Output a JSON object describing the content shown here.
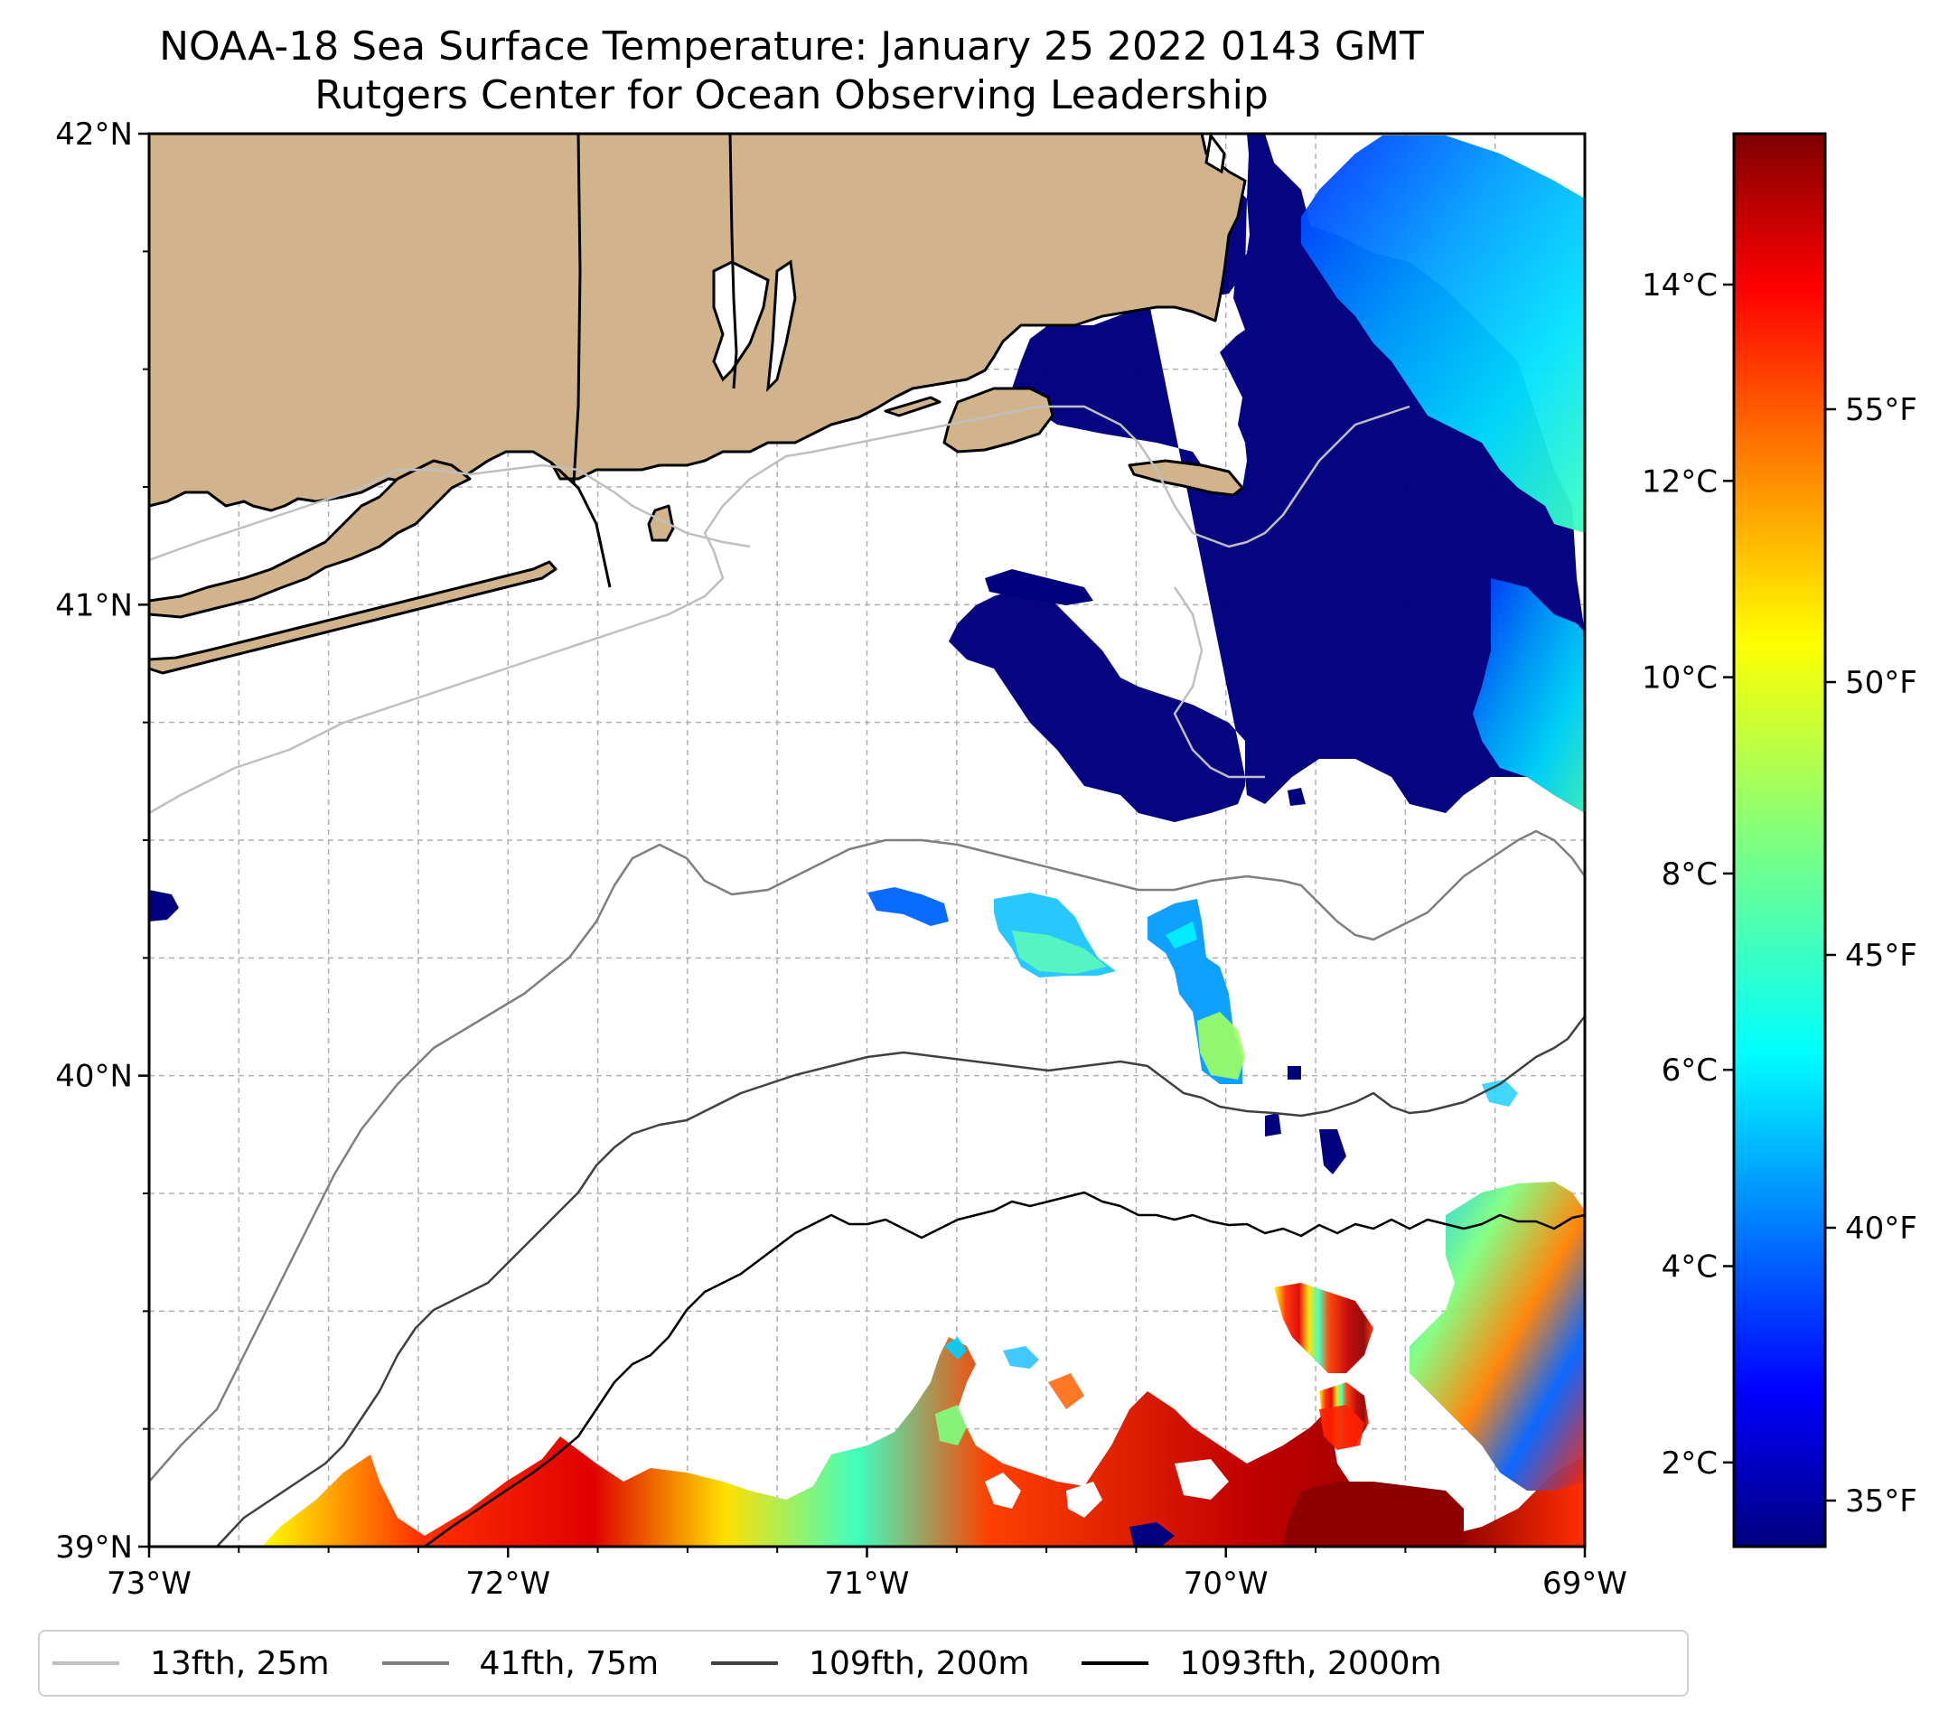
{
  "title": {
    "line1": "NOAA-18 Sea Surface Temperature: January 25 2022 0143 GMT",
    "line2": "Rutgers Center for Ocean Observing Leadership"
  },
  "map": {
    "lat_ticks": [
      "42°N",
      "41°N",
      "40°N",
      "39°N"
    ],
    "lon_ticks": [
      "73°W",
      "72°W",
      "71°W",
      "70°W",
      "69°W"
    ],
    "extent": {
      "lon_min": -73,
      "lon_max": -69,
      "lat_min": 39,
      "lat_max": 42
    },
    "gridlines": true,
    "land_color": "#d2b48c",
    "ocean_color": "#ffffff"
  },
  "colorbar": {
    "celsius_ticks": [
      "14°C",
      "12°C",
      "10°C",
      "8°C",
      "6°C",
      "4°C",
      "2°C"
    ],
    "fahrenheit_ticks": [
      "55°F",
      "50°F",
      "45°F",
      "40°F",
      "35°F"
    ],
    "colormap": "jet",
    "colormap_stops": [
      "#00007f",
      "#0000ff",
      "#007fff",
      "#00ffff",
      "#7fff7f",
      "#ffff00",
      "#ff7f00",
      "#ff0000",
      "#7f0000"
    ]
  },
  "legend": {
    "items": [
      {
        "label": "13fth, 25m",
        "color": "#bfbfbf"
      },
      {
        "label": "41fth, 75m",
        "color": "#7f7f7f"
      },
      {
        "label": "109fth, 200m",
        "color": "#404040"
      },
      {
        "label": "1093fth, 2000m",
        "color": "#000000"
      }
    ]
  }
}
